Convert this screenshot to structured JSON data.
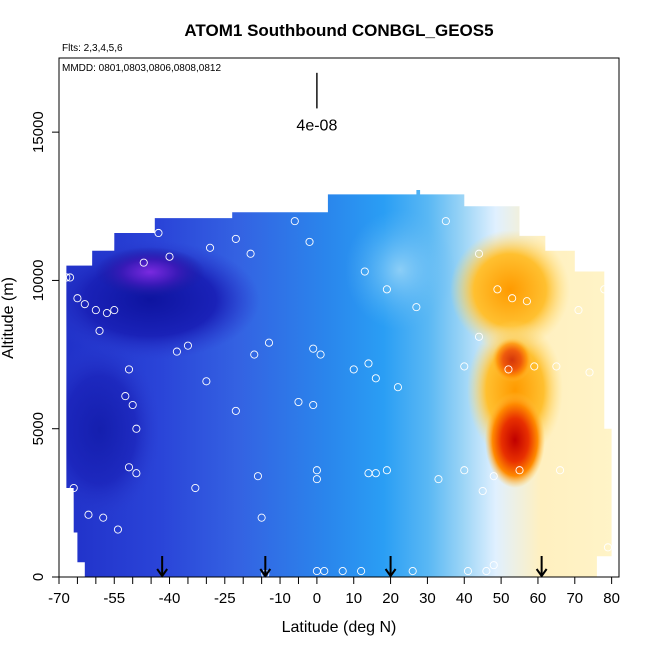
{
  "chart_data": {
    "type": "heatmap",
    "title": "ATOM1 Southbound CONBGL_GEOS5",
    "flights_note": "Flts: 2,3,4,5,6",
    "dates_note": "MMDD: 0801,0803,0806,0808,0812",
    "xlabel": "Latitude (deg N)",
    "ylabel": "Altitude (m)",
    "xlim": [
      -70,
      82
    ],
    "ylim": [
      0,
      17500
    ],
    "x_ticks": [
      -70,
      -55,
      -40,
      -25,
      -10,
      0,
      10,
      20,
      30,
      40,
      50,
      60,
      70,
      80
    ],
    "x_tick_labels": [
      "-70",
      "-55",
      "-40",
      "-25",
      "-10",
      "0",
      "10",
      "20",
      "30",
      "40",
      "50",
      "60",
      "70",
      "80"
    ],
    "x_minor_ticks": [
      -65,
      -60,
      -50,
      -45,
      -35,
      -30,
      -20,
      -15,
      -5
    ],
    "y_ticks": [
      0,
      5000,
      10000,
      15000
    ],
    "y_tick_labels": [
      "0",
      "5000",
      "10000",
      "15000"
    ],
    "scale_bar_label": "4e-08",
    "scale_bar": {
      "lat": 0,
      "alt_top": 17000,
      "alt_bottom": 15800
    },
    "arrows_lat": [
      -42,
      -14,
      20,
      61
    ],
    "colors": {
      "darkest": "#1a1aa0",
      "purple": "#6a2ad8",
      "dark_blue": "#1a2ad0",
      "mid_blue": "#3a6ae8",
      "light_blue": "#2a9ef4",
      "sky": "#7ecaf4",
      "pale": "#e8f4ff",
      "yellow": "#ffe070",
      "orange": "#ffa000",
      "red": "#e01000"
    },
    "flight_points": [
      [
        -68,
        10100
      ],
      [
        -67,
        10100
      ],
      [
        -66,
        3000
      ],
      [
        -65,
        9400
      ],
      [
        -63,
        9200
      ],
      [
        -60,
        9000
      ],
      [
        -59,
        8300
      ],
      [
        -57,
        8900
      ],
      [
        -55,
        9000
      ],
      [
        -62,
        2100
      ],
      [
        -58,
        2000
      ],
      [
        -54,
        1600
      ],
      [
        -51,
        7000
      ],
      [
        -50,
        5800
      ],
      [
        -49,
        5000
      ],
      [
        -52,
        6100
      ],
      [
        -51,
        3700
      ],
      [
        -49,
        3500
      ],
      [
        -47,
        10600
      ],
      [
        -43,
        11600
      ],
      [
        -40,
        10800
      ],
      [
        -38,
        7600
      ],
      [
        -35,
        7800
      ],
      [
        -33,
        3000
      ],
      [
        -29,
        11100
      ],
      [
        -22,
        11400
      ],
      [
        -18,
        10900
      ],
      [
        -22,
        5600
      ],
      [
        -17,
        7500
      ],
      [
        -16,
        3400
      ],
      [
        -13,
        7900
      ],
      [
        -15,
        2000
      ],
      [
        -14,
        100
      ],
      [
        -6,
        12000
      ],
      [
        -2,
        11300
      ],
      [
        -5,
        5900
      ],
      [
        -1,
        5800
      ],
      [
        -1,
        7700
      ],
      [
        1,
        7500
      ],
      [
        0,
        3600
      ],
      [
        0,
        3300
      ],
      [
        0,
        200
      ],
      [
        2,
        200
      ],
      [
        7,
        200
      ],
      [
        12,
        200
      ],
      [
        14,
        3500
      ],
      [
        10,
        7000
      ],
      [
        13,
        10300
      ],
      [
        14,
        7200
      ],
      [
        16,
        6700
      ],
      [
        19,
        9700
      ],
      [
        16,
        3500
      ],
      [
        19,
        3600
      ],
      [
        22,
        6400
      ],
      [
        27,
        9100
      ],
      [
        26,
        200
      ],
      [
        33,
        3300
      ],
      [
        35,
        12000
      ],
      [
        40,
        7100
      ],
      [
        40,
        3600
      ],
      [
        44,
        10900
      ],
      [
        44,
        8100
      ],
      [
        45,
        2900
      ],
      [
        46,
        200
      ],
      [
        48,
        3400
      ],
      [
        48,
        400
      ],
      [
        49,
        9700
      ],
      [
        52,
        7000
      ],
      [
        53,
        9400
      ],
      [
        55,
        3600
      ],
      [
        57,
        9300
      ],
      [
        59,
        7100
      ],
      [
        65,
        7100
      ],
      [
        66,
        3600
      ],
      [
        71,
        9000
      ],
      [
        74,
        6900
      ],
      [
        78,
        9700
      ],
      [
        79,
        1000
      ],
      [
        41,
        200
      ],
      [
        -30,
        6600
      ]
    ]
  }
}
